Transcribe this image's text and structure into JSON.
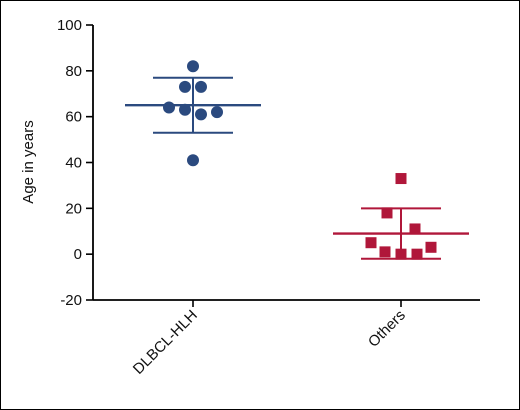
{
  "chart_data": {
    "type": "scatter",
    "ylabel": "Age in years",
    "ylim": [
      -20,
      100
    ],
    "yticks": [
      -20,
      0,
      20,
      40,
      60,
      80,
      100
    ],
    "categories": [
      "DLBCL-HLH",
      "Others"
    ],
    "grid": false,
    "series": [
      {
        "category": "DLBCL-HLH",
        "marker": "circle",
        "color": "#2b4a7f",
        "values": [
          82,
          73,
          73,
          64,
          63,
          62,
          61,
          41
        ],
        "mean": 65,
        "sd_upper": 77,
        "sd_lower": 53
      },
      {
        "category": "Others",
        "marker": "square",
        "color": "#b0173a",
        "values": [
          33,
          18,
          11,
          5,
          3,
          1,
          0,
          0
        ],
        "mean": 9,
        "sd_upper": 20,
        "sd_lower": -2
      }
    ]
  }
}
